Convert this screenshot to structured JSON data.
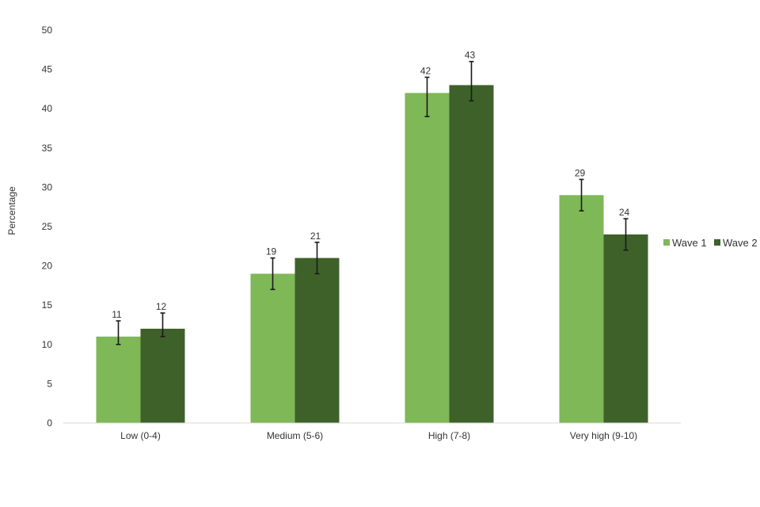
{
  "chart_data": {
    "type": "bar",
    "title": "",
    "xlabel": "",
    "ylabel": "Percentage",
    "ylim": [
      0,
      50
    ],
    "yticks": [
      0,
      5,
      10,
      15,
      20,
      25,
      30,
      35,
      40,
      45,
      50
    ],
    "grid": false,
    "legend_position": "right",
    "categories": [
      "Low (0-4)",
      "Medium (5-6)",
      "High (7-8)",
      "Very high (9-10)"
    ],
    "series": [
      {
        "name": "Wave 1",
        "color": "#7fb857",
        "values": [
          11,
          19,
          42,
          29
        ],
        "error_low": [
          10,
          17,
          39,
          27
        ],
        "error_high": [
          13,
          21,
          44,
          31
        ]
      },
      {
        "name": "Wave 2",
        "color": "#3e6129",
        "values": [
          12,
          21,
          43,
          24
        ],
        "error_low": [
          11,
          19,
          41,
          22
        ],
        "error_high": [
          14,
          23,
          46,
          26
        ]
      }
    ]
  }
}
